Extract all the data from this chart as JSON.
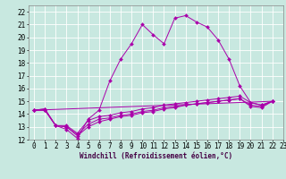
{
  "xlabel": "Windchill (Refroidissement éolien,°C)",
  "ylabel": "",
  "xlim": [
    -0.5,
    23
  ],
  "ylim": [
    12,
    22.5
  ],
  "xticks": [
    0,
    1,
    2,
    3,
    4,
    5,
    6,
    7,
    8,
    9,
    10,
    11,
    12,
    13,
    14,
    15,
    16,
    17,
    18,
    19,
    20,
    21,
    22,
    23
  ],
  "yticks": [
    12,
    13,
    14,
    15,
    16,
    17,
    18,
    19,
    20,
    21,
    22
  ],
  "bg_color": "#c8e8e0",
  "line_color": "#aa00aa",
  "grid_color": "#ffffff",
  "lines": [
    [
      0,
      14.3,
      1,
      14.4,
      2,
      13.1,
      3,
      12.8,
      4,
      12.1,
      5,
      13.6,
      6,
      14.3,
      7,
      16.6,
      8,
      18.3,
      9,
      19.5,
      10,
      21.0,
      11,
      20.2,
      12,
      19.5,
      13,
      21.5,
      14,
      21.7,
      15,
      21.2,
      16,
      20.8,
      17,
      19.8,
      18,
      18.3,
      19,
      16.2,
      20,
      14.9,
      21,
      14.7,
      22,
      15.0
    ],
    [
      0,
      14.3,
      1,
      14.4,
      2,
      13.1,
      3,
      13.1,
      4,
      12.5,
      5,
      13.5,
      6,
      13.8,
      7,
      13.9,
      8,
      14.1,
      9,
      14.2,
      10,
      14.4,
      11,
      14.5,
      12,
      14.7,
      13,
      14.8,
      14,
      14.9,
      15,
      15.0,
      16,
      15.1,
      17,
      15.2,
      18,
      15.3,
      19,
      15.4,
      20,
      14.9,
      21,
      14.7,
      22,
      15.0
    ],
    [
      0,
      14.3,
      1,
      14.3,
      2,
      13.1,
      3,
      13.0,
      4,
      12.4,
      5,
      13.2,
      6,
      13.6,
      7,
      13.7,
      8,
      13.9,
      9,
      14.0,
      10,
      14.2,
      11,
      14.3,
      12,
      14.5,
      13,
      14.6,
      14,
      14.7,
      15,
      14.8,
      16,
      14.9,
      17,
      15.0,
      18,
      15.1,
      19,
      15.2,
      20,
      14.7,
      21,
      14.6,
      22,
      15.0
    ],
    [
      0,
      14.3,
      1,
      14.3,
      2,
      13.1,
      3,
      13.0,
      4,
      12.3,
      5,
      13.0,
      6,
      13.4,
      7,
      13.6,
      8,
      13.8,
      9,
      13.9,
      10,
      14.1,
      11,
      14.2,
      12,
      14.4,
      13,
      14.5,
      14,
      14.7,
      15,
      14.8,
      16,
      14.9,
      17,
      15.0,
      18,
      15.1,
      19,
      15.2,
      20,
      14.6,
      21,
      14.5,
      22,
      15.0
    ],
    [
      0,
      14.3,
      22,
      15.0
    ]
  ],
  "marker": "D",
  "markersize": 2.0,
  "tick_fontsize": 5.5,
  "xlabel_fontsize": 5.5,
  "linewidth": 0.7
}
